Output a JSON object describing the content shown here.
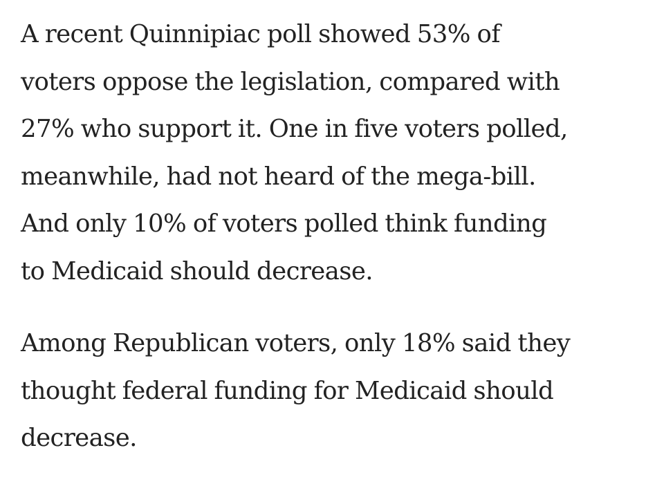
{
  "article": {
    "paragraphs": [
      {
        "lines": [
          "A recent Quinnipiac poll showed 53% of",
          "voters oppose the legislation, compared with",
          "27% who support it. One in five voters polled,",
          "meanwhile, had not heard of the mega-bill.",
          "And only 10% of voters polled think funding",
          "to Medicaid should decrease."
        ]
      },
      {
        "lines": [
          "Among Republican voters, only 18% said they",
          "thought federal funding for Medicaid should",
          "decrease."
        ]
      }
    ]
  }
}
